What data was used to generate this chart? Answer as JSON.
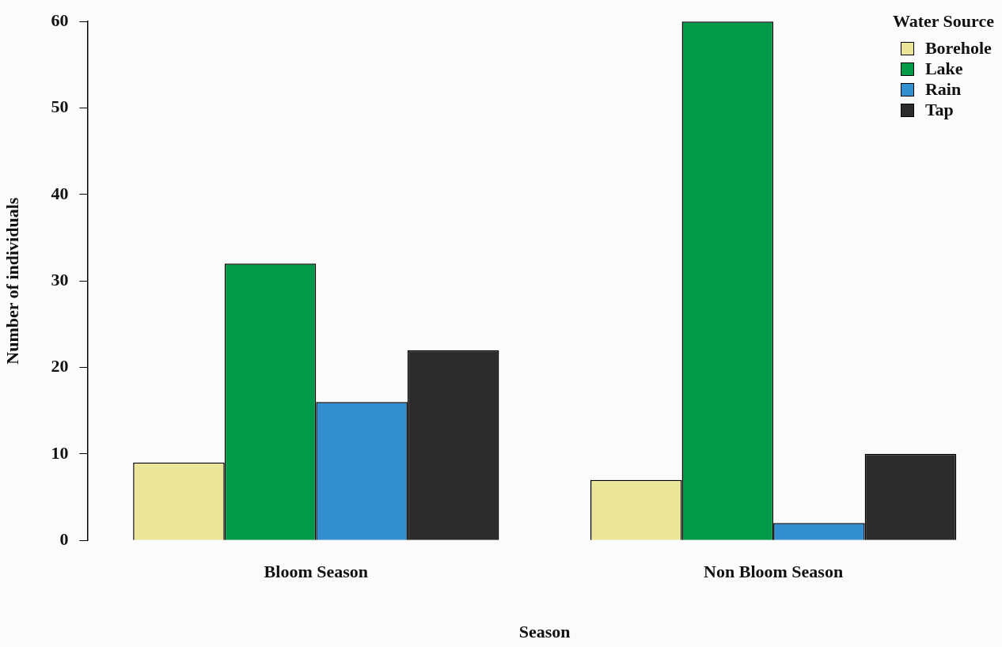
{
  "chart_data": {
    "type": "bar",
    "xlabel": "Season",
    "ylabel": "Number of individuals",
    "legend_title": "Water Source",
    "legend": "top right",
    "grid": false,
    "categories": [
      "Bloom Season",
      "Non Bloom Season"
    ],
    "series": [
      {
        "name": "Borehole",
        "color": "#ebe59a",
        "values": [
          9,
          7
        ]
      },
      {
        "name": "Lake",
        "color": "#009a49",
        "values": [
          32,
          60
        ]
      },
      {
        "name": "Rain",
        "color": "#3390d0",
        "values": [
          16,
          2
        ]
      },
      {
        "name": "Tap",
        "color": "#2b2b2b",
        "values": [
          22,
          10
        ]
      }
    ],
    "ylim": [
      0,
      60
    ],
    "yticks": [
      0,
      10,
      20,
      30,
      40,
      50,
      60
    ]
  }
}
